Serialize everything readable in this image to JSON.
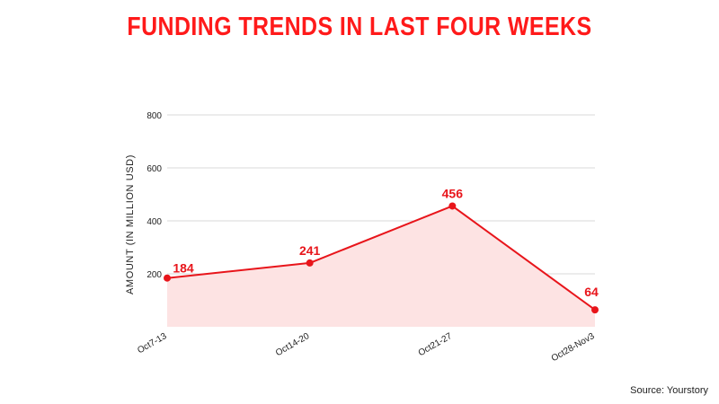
{
  "chart_data": {
    "type": "area",
    "title": "FUNDING TRENDS IN LAST FOUR WEEKS",
    "xlabel": "",
    "ylabel": "AMOUNT (IN MILLION USD)",
    "categories": [
      "Oct7-13",
      "Oct14-20",
      "Oct21-27",
      "Oct28-Nov3"
    ],
    "values": [
      184,
      241,
      456,
      64
    ],
    "data_labels": [
      "184",
      "241",
      "456",
      "64"
    ],
    "ylim": [
      0,
      800
    ],
    "yticks": [
      200,
      400,
      600,
      800
    ],
    "ytick_labels": [
      "200",
      "400",
      "600",
      "800"
    ],
    "grid": true,
    "colors": {
      "line": "#e8151b",
      "fill": "#fde3e3",
      "label": "#e8151b",
      "title": "#ff1a1a",
      "grid": "#d9d9d9"
    }
  },
  "source": "Source: Yourstory"
}
